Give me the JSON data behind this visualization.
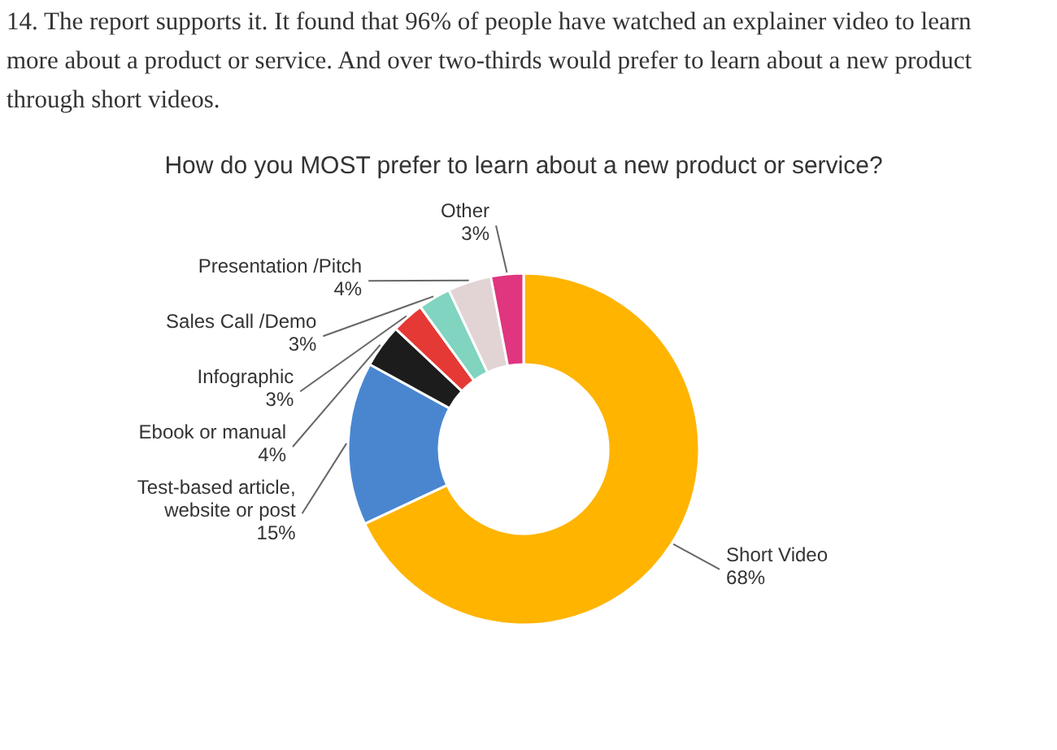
{
  "chart_data": {
    "type": "donut",
    "title": "How do you MOST prefer to learn about a new product or service?",
    "annotations": [
      "14. The report supports it. It found that 96% of people have watched an explainer video to learn more about a product or service. And over two-thirds would prefer to learn about a new product through short videos."
    ],
    "categories": [
      "Short Video",
      "Test-based article, website or post",
      "Ebook or manual",
      "Infographic",
      "Sales Call /Demo",
      "Presentation /Pitch",
      "Other"
    ],
    "values": [
      68,
      15,
      4,
      3,
      3,
      4,
      3
    ],
    "value_labels": [
      "68%",
      "15%",
      "4%",
      "3%",
      "3%",
      "4%",
      "3%"
    ],
    "colors": [
      "#ffb400",
      "#4a86d0",
      "#1c1c1c",
      "#e53935",
      "#80d4c0",
      "#e2d4d4",
      "#e0357f"
    ]
  }
}
